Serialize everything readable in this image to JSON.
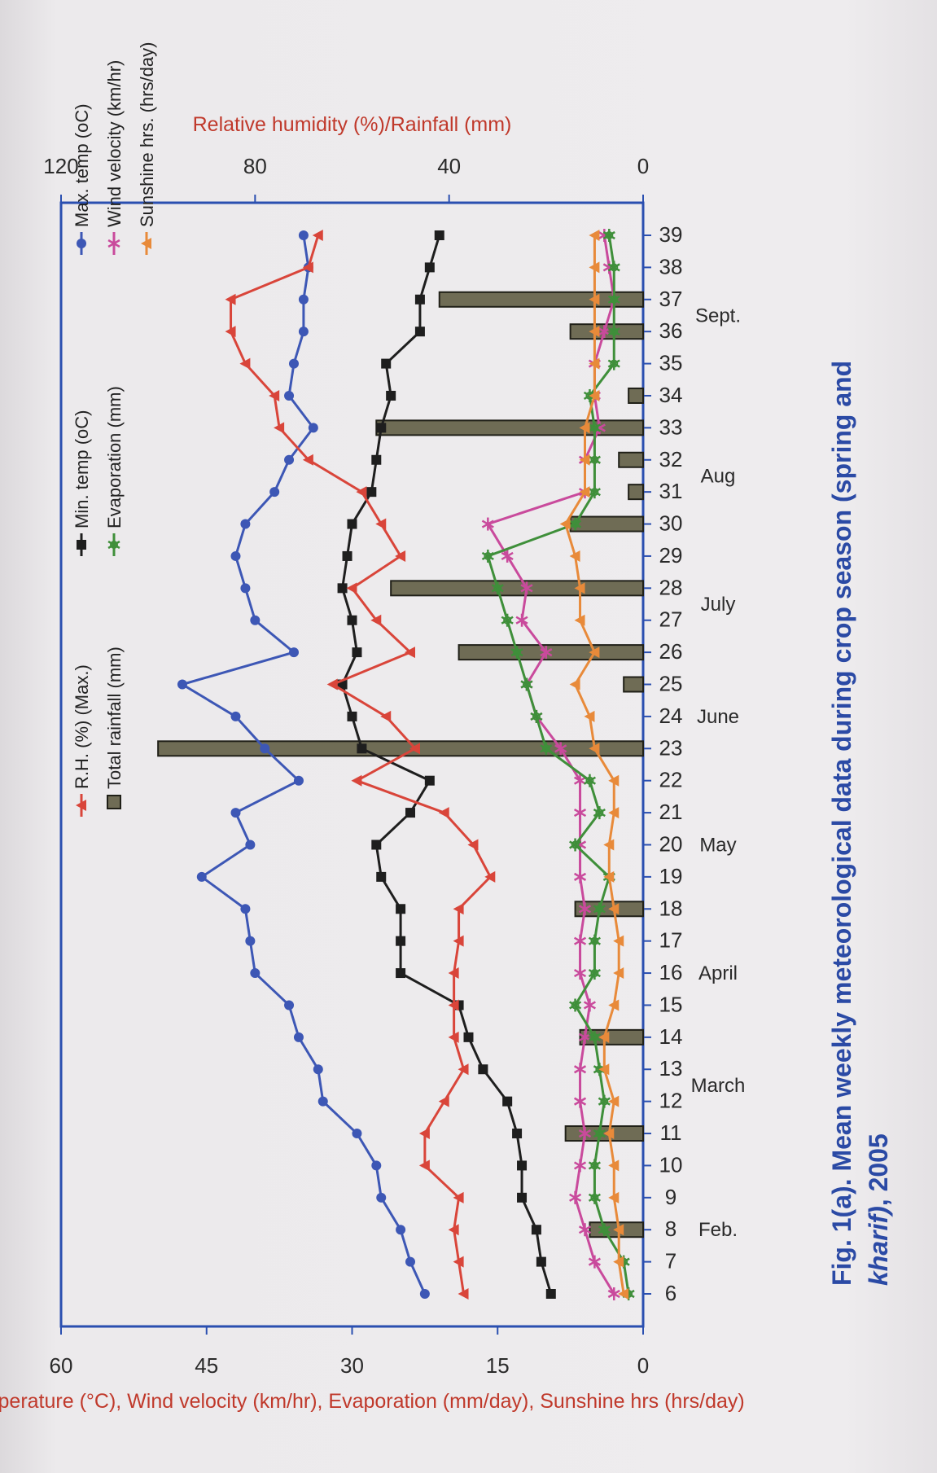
{
  "caption": {
    "line1": "Fig. 1(a).  Mean weekly meteorological data during crop season (spring and",
    "line2_italic": "kharif)",
    "line2_rest": ", 2005"
  },
  "colors": {
    "max_temp": "#3d57b5",
    "min_temp": "#1e1e1e",
    "rh": "#d9453a",
    "wind": "#c94a9c",
    "evaporation": "#3f8f3a",
    "sunshine": "#e88a3a",
    "rainfall_fill": "#6f6c55",
    "rainfall_stroke": "#202018",
    "frame": "#2a4fb0"
  },
  "chart_data": {
    "type": "line",
    "xlabel": "",
    "ylabel_left": "Temperature (°C), Wind velocity (km/hr), Evaporation (mm/day), Sunshine hrs (hrs/day)",
    "ylabel_right": "Relative humidity (%)/Rainfall (mm)",
    "ylim_left": [
      0,
      60
    ],
    "yticks_left": [
      0,
      15,
      30,
      45,
      60
    ],
    "ylim_right": [
      0,
      120
    ],
    "yticks_right": [
      0,
      40,
      80,
      120
    ],
    "weeks": [
      "6",
      "7",
      "8",
      "9",
      "10",
      "11",
      "12",
      "13",
      "14",
      "15",
      "16",
      "17",
      "18",
      "19",
      "20",
      "21",
      "22",
      "23",
      "24",
      "25",
      "26",
      "27",
      "28",
      "29",
      "30",
      "31",
      "32",
      "33",
      "34",
      "35",
      "36",
      "37",
      "38",
      "39"
    ],
    "months": [
      {
        "label": "Feb.",
        "at_week": "8"
      },
      {
        "label": "March",
        "at_week": "12.5"
      },
      {
        "label": "April",
        "at_week": "16"
      },
      {
        "label": "May",
        "at_week": "20"
      },
      {
        "label": "June",
        "at_week": "24"
      },
      {
        "label": "July",
        "at_week": "27.5"
      },
      {
        "label": "Aug",
        "at_week": "31.5"
      },
      {
        "label": "Sept.",
        "at_week": "36.5"
      }
    ],
    "legend": [
      {
        "name": "Max. temp (oC)",
        "key": "max_temp"
      },
      {
        "name": "Min. temp (oC)",
        "key": "min_temp"
      },
      {
        "name": "R.H. (%) (Max.)",
        "key": "rh"
      },
      {
        "name": "Wind velocity (km/hr)",
        "key": "wind"
      },
      {
        "name": "Evaporation (mm)",
        "key": "evaporation"
      },
      {
        "name": "Total rainfall (mm)",
        "key": "rainfall"
      },
      {
        "name": "Sunshine hrs. (hrs/day)",
        "key": "sunshine"
      }
    ],
    "series": [
      {
        "name": "Max. temp (oC)",
        "key": "max_temp",
        "axis": "left",
        "marker": "circle",
        "values": [
          22.5,
          24,
          25,
          27,
          27.5,
          29.5,
          33,
          33.5,
          35.5,
          36.5,
          40,
          40.5,
          41,
          45.5,
          40.5,
          42,
          35.5,
          39,
          42,
          47.5,
          36,
          40,
          41,
          42,
          41,
          38,
          36.5,
          34,
          36.5,
          36,
          35,
          35,
          34.5,
          35
        ]
      },
      {
        "name": "Min. temp (oC)",
        "key": "min_temp",
        "axis": "left",
        "marker": "square",
        "values": [
          9.5,
          10.5,
          11,
          12.5,
          12.5,
          13,
          14,
          16.5,
          18,
          19,
          25,
          25,
          25,
          27,
          27.5,
          24,
          22,
          29,
          30,
          31,
          29.5,
          30,
          31,
          30.5,
          30,
          28,
          27.5,
          27,
          26,
          26.5,
          23,
          23,
          22,
          21
        ]
      },
      {
        "name": "R.H. (%) (Max.)",
        "key": "rh",
        "axis": "right",
        "marker": "triangle",
        "values": [
          37,
          38,
          39,
          38,
          45,
          45,
          41,
          37,
          39,
          39,
          39,
          38,
          38,
          31.5,
          35,
          41,
          59,
          47,
          53,
          64,
          48,
          55,
          60,
          50,
          54,
          58,
          69,
          75,
          76,
          82,
          85,
          85,
          69,
          67
        ]
      },
      {
        "name": "Wind velocity (km/hr)",
        "key": "wind",
        "axis": "left",
        "marker": "star",
        "values": [
          3,
          5,
          6,
          7,
          6.5,
          6,
          6.5,
          6.5,
          6,
          5.5,
          6.5,
          6.5,
          6,
          6.5,
          6.5,
          6.5,
          6.5,
          8.5,
          11,
          12,
          10,
          12.5,
          12,
          14,
          16,
          6,
          6,
          4.5,
          5,
          5,
          4,
          3,
          3.5,
          4
        ]
      },
      {
        "name": "Evaporation (mm)",
        "key": "evaporation",
        "axis": "left",
        "marker": "asterisk",
        "values": [
          1.5,
          2,
          4,
          5,
          5,
          4.5,
          4,
          4.5,
          5,
          7,
          5,
          5,
          4.5,
          3.5,
          7,
          4.5,
          5.5,
          10,
          11,
          12,
          13,
          14,
          15,
          16,
          7,
          5,
          5,
          5,
          5.5,
          3,
          3,
          3,
          3,
          3.5
        ]
      },
      {
        "name": "Sunshine hrs. (hrs/day)",
        "key": "sunshine",
        "axis": "left",
        "marker": "triangle",
        "values": [
          2,
          2.5,
          2.5,
          3,
          3,
          3.5,
          3,
          4,
          4,
          3,
          2.5,
          2.5,
          3,
          3.5,
          3.5,
          3,
          3,
          5,
          5.5,
          7,
          5,
          6.5,
          6.5,
          7,
          8,
          6,
          6,
          6,
          5,
          5,
          5,
          5,
          5,
          5
        ]
      },
      {
        "name": "Total rainfall (mm)",
        "key": "rainfall",
        "axis": "right",
        "type": "bar",
        "values": [
          0,
          0,
          11,
          0,
          0,
          16,
          0,
          0,
          13,
          0,
          0,
          0,
          14,
          0,
          0,
          0,
          0,
          100,
          0,
          4,
          38,
          0,
          52,
          0,
          15,
          3,
          5,
          55,
          3,
          0,
          15,
          42,
          0,
          0
        ]
      }
    ]
  }
}
